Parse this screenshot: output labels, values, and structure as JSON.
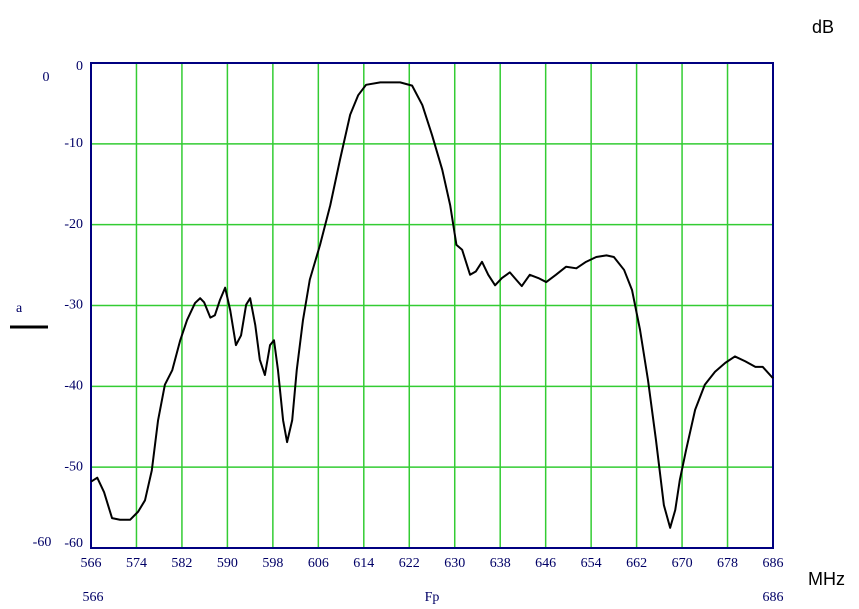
{
  "chart_data": {
    "type": "line",
    "y_unit": "dB",
    "x_unit": "MHz",
    "xlabel": "Fp",
    "xlim": [
      566,
      686
    ],
    "ylim": [
      -60,
      0
    ],
    "xticks": [
      566,
      574,
      582,
      590,
      598,
      606,
      614,
      622,
      630,
      638,
      646,
      654,
      662,
      670,
      678,
      686
    ],
    "yticks": [
      0,
      -10,
      -20,
      -30,
      -40,
      -50,
      -60
    ],
    "grid": true,
    "grid_color": "#33cc33",
    "axis_color": "#000080",
    "x": [
      566,
      567.1,
      568.3,
      569.7,
      571.1,
      572.9,
      574.3,
      575.5,
      576.7,
      577.8,
      579,
      580.3,
      581.7,
      582.9,
      584.3,
      585.2,
      585.9,
      587,
      587.8,
      588.7,
      589.6,
      590.5,
      591.5,
      592.4,
      593.3,
      594,
      594.9,
      595.7,
      596.6,
      597.5,
      598.2,
      598.9,
      599.8,
      600.5,
      601.4,
      602.2,
      603.3,
      604.5,
      606.3,
      608.1,
      609.8,
      611.6,
      613,
      614.4,
      616.9,
      620.4,
      622.5,
      624.3,
      626,
      627.8,
      629.2,
      630.3,
      631.3,
      632.7,
      633.7,
      634.8,
      635.9,
      637.1,
      638.3,
      639.7,
      640.8,
      641.8,
      643.2,
      644.7,
      646.1,
      647.8,
      649.6,
      651.4,
      653.1,
      654.9,
      656.7,
      658,
      659.8,
      661.2,
      662.6,
      664,
      665.4,
      666.8,
      667.9,
      668.8,
      669.6,
      670.7,
      672.3,
      674,
      675.8,
      677.6,
      679.3,
      681.1,
      682.9,
      684.2,
      686
    ],
    "series": [
      {
        "name": "a",
        "color": "#000000",
        "values": [
          -51.8,
          -51.3,
          -53.1,
          -56.3,
          -56.5,
          -56.5,
          -55.5,
          -54.1,
          -50.4,
          -44.2,
          -39.8,
          -38,
          -34.3,
          -31.8,
          -29.7,
          -29.1,
          -29.6,
          -31.5,
          -31.2,
          -29.3,
          -27.8,
          -30.6,
          -34.9,
          -33.7,
          -29.9,
          -29.1,
          -32.4,
          -36.7,
          -38.6,
          -34.9,
          -34.3,
          -38,
          -44.2,
          -46.9,
          -44.2,
          -38,
          -31.8,
          -26.8,
          -22.5,
          -17.6,
          -12,
          -6.4,
          -4,
          -2.7,
          -2.4,
          -2.4,
          -2.8,
          -5.2,
          -8.9,
          -13.2,
          -17.6,
          -22.5,
          -23.1,
          -26.2,
          -25.8,
          -24.6,
          -26.2,
          -27.5,
          -26.6,
          -25.9,
          -26.8,
          -27.6,
          -26.2,
          -26.6,
          -27.1,
          -26.2,
          -25.2,
          -25.4,
          -24.6,
          -24,
          -23.8,
          -24,
          -25.6,
          -28.1,
          -33,
          -39.2,
          -46.6,
          -54.7,
          -57.5,
          -55.3,
          -51.6,
          -47.9,
          -42.9,
          -39.8,
          -38.2,
          -37.1,
          -36.3,
          -36.9,
          -37.6,
          -37.6,
          -39
        ]
      }
    ]
  }
}
